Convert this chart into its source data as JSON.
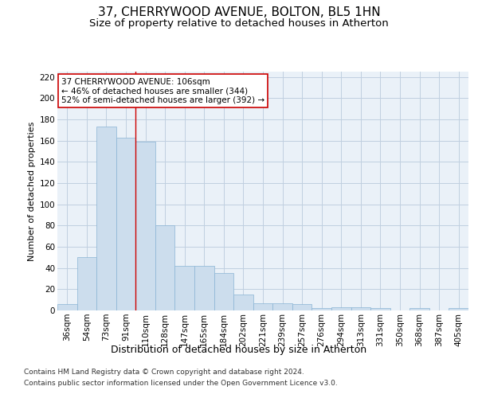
{
  "title": "37, CHERRYWOOD AVENUE, BOLTON, BL5 1HN",
  "subtitle": "Size of property relative to detached houses in Atherton",
  "xlabel": "Distribution of detached houses by size in Atherton",
  "ylabel": "Number of detached properties",
  "bar_categories": [
    "36sqm",
    "54sqm",
    "73sqm",
    "91sqm",
    "110sqm",
    "128sqm",
    "147sqm",
    "165sqm",
    "184sqm",
    "202sqm",
    "221sqm",
    "239sqm",
    "257sqm",
    "276sqm",
    "294sqm",
    "313sqm",
    "331sqm",
    "350sqm",
    "368sqm",
    "387sqm",
    "405sqm"
  ],
  "bar_values": [
    6,
    50,
    173,
    163,
    159,
    80,
    42,
    42,
    35,
    15,
    7,
    7,
    6,
    2,
    3,
    3,
    2,
    0,
    2,
    0,
    2
  ],
  "bar_color": "#ccdded",
  "bar_edge_color": "#8ab4d4",
  "bar_edge_width": 0.5,
  "grid_color": "#c0cfe0",
  "bg_color": "#eaf1f8",
  "vline_x": 3.5,
  "vline_color": "#cc0000",
  "annotation_text": "37 CHERRYWOOD AVENUE: 106sqm\n← 46% of detached houses are smaller (344)\n52% of semi-detached houses are larger (392) →",
  "annotation_box_color": "#ffffff",
  "annotation_box_edge_color": "#cc0000",
  "ylim": [
    0,
    225
  ],
  "yticks": [
    0,
    20,
    40,
    60,
    80,
    100,
    120,
    140,
    160,
    180,
    200,
    220
  ],
  "footer_line1": "Contains HM Land Registry data © Crown copyright and database right 2024.",
  "footer_line2": "Contains public sector information licensed under the Open Government Licence v3.0.",
  "title_fontsize": 11,
  "subtitle_fontsize": 9.5,
  "xlabel_fontsize": 9,
  "ylabel_fontsize": 8,
  "annotation_fontsize": 7.5,
  "tick_fontsize": 7.5,
  "footer_fontsize": 6.5
}
